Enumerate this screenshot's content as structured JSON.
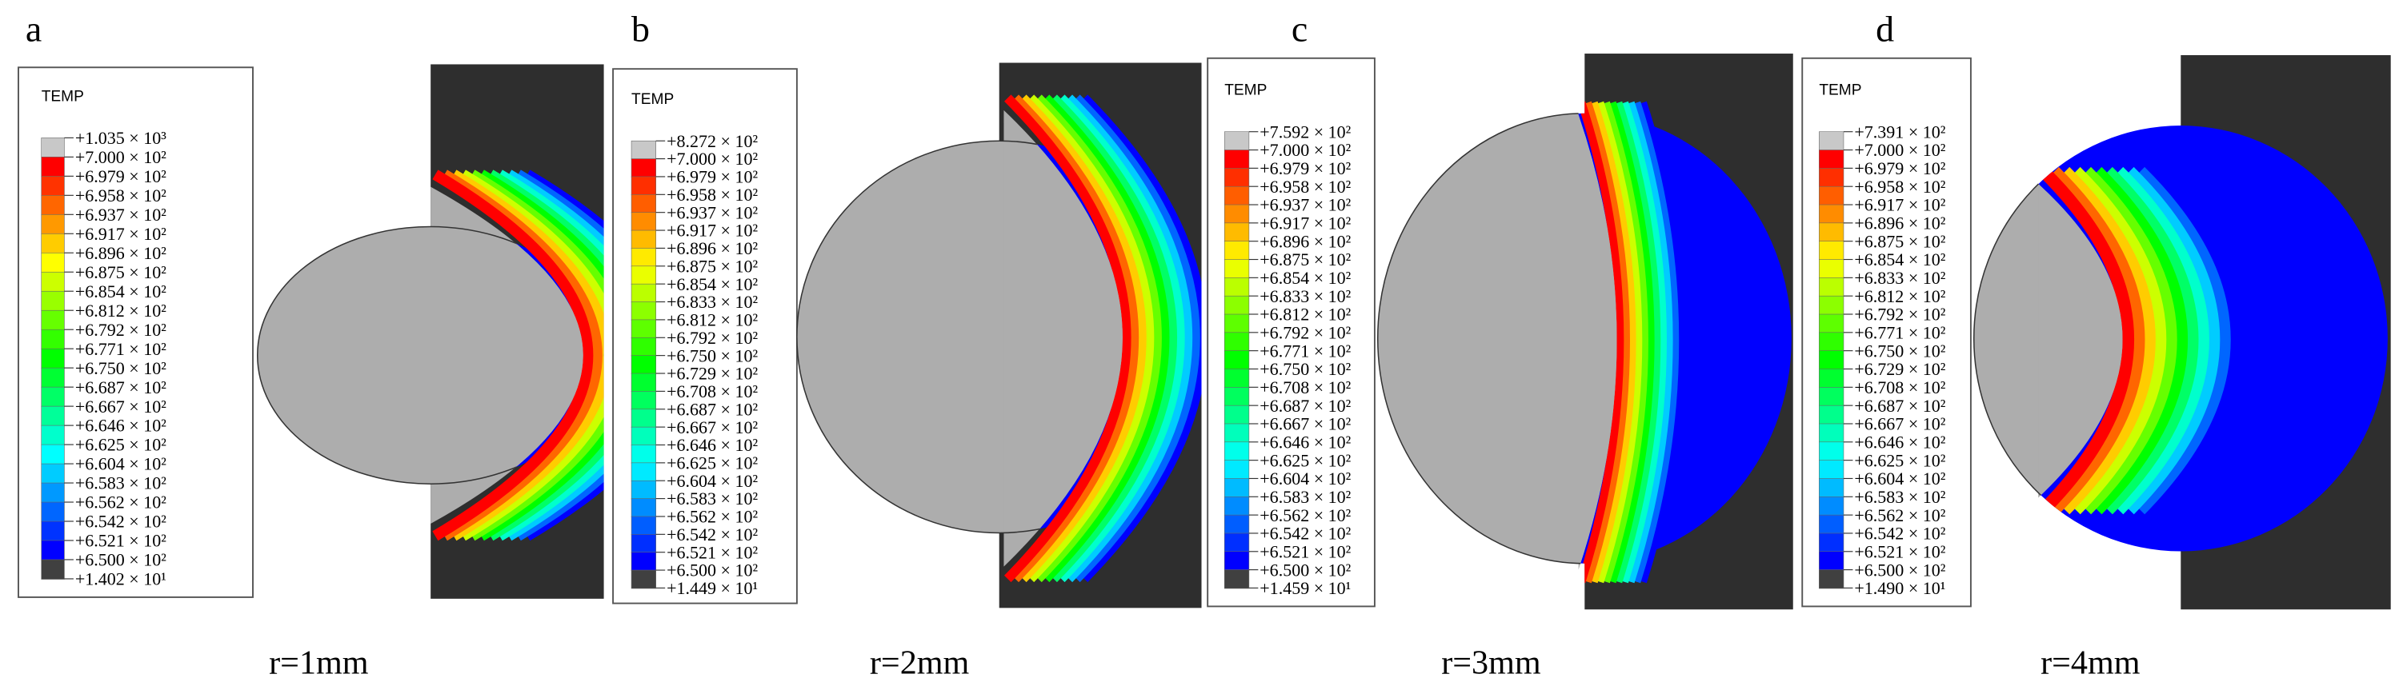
{
  "panels": [
    {
      "label": "a",
      "caption": "r=1mm",
      "legend": {
        "title": "TEMP",
        "entries": [
          "+1.035 × 10³",
          "+7.000 × 10²",
          "+6.979 × 10²",
          "+6.958 × 10²",
          "+6.937 × 10²",
          "+6.917 × 10²",
          "+6.896 × 10²",
          "+6.875 × 10²",
          "+6.854 × 10²",
          "+6.812 × 10²",
          "+6.792 × 10²",
          "+6.771 × 10²",
          "+6.750 × 10²",
          "+6.687 × 10²",
          "+6.667 × 10²",
          "+6.646 × 10²",
          "+6.625 × 10²",
          "+6.604 × 10²",
          "+6.583 × 10²",
          "+6.562 × 10²",
          "+6.542 × 10²",
          "+6.521 × 10²",
          "+6.500 × 10²",
          "+1.402 × 10¹"
        ]
      }
    },
    {
      "label": "b",
      "caption": "r=2mm",
      "legend": {
        "title": "TEMP",
        "entries": [
          "+8.272 × 10²",
          "+7.000 × 10²",
          "+6.979 × 10²",
          "+6.958 × 10²",
          "+6.937 × 10²",
          "+6.917 × 10²",
          "+6.896 × 10²",
          "+6.875 × 10²",
          "+6.854 × 10²",
          "+6.833 × 10²",
          "+6.812 × 10²",
          "+6.792 × 10²",
          "+6.750 × 10²",
          "+6.729 × 10²",
          "+6.708 × 10²",
          "+6.687 × 10²",
          "+6.667 × 10²",
          "+6.646 × 10²",
          "+6.625 × 10²",
          "+6.604 × 10²",
          "+6.583 × 10²",
          "+6.562 × 10²",
          "+6.542 × 10²",
          "+6.521 × 10²",
          "+6.500 × 10²",
          "+1.449 × 10¹"
        ]
      }
    },
    {
      "label": "c",
      "caption": "r=3mm",
      "legend": {
        "title": "TEMP",
        "entries": [
          "+7.592 × 10²",
          "+7.000 × 10²",
          "+6.979 × 10²",
          "+6.958 × 10²",
          "+6.937 × 10²",
          "+6.917 × 10²",
          "+6.896 × 10²",
          "+6.875 × 10²",
          "+6.854 × 10²",
          "+6.833 × 10²",
          "+6.812 × 10²",
          "+6.792 × 10²",
          "+6.771 × 10²",
          "+6.750 × 10²",
          "+6.708 × 10²",
          "+6.687 × 10²",
          "+6.667 × 10²",
          "+6.646 × 10²",
          "+6.625 × 10²",
          "+6.604 × 10²",
          "+6.583 × 10²",
          "+6.562 × 10²",
          "+6.542 × 10²",
          "+6.521 × 10²",
          "+6.500 × 10²",
          "+1.459 × 10¹"
        ]
      }
    },
    {
      "label": "d",
      "caption": "r=4mm",
      "legend": {
        "title": "TEMP",
        "entries": [
          "+7.391 × 10²",
          "+7.000 × 10²",
          "+6.979 × 10²",
          "+6.958 × 10²",
          "+6.917 × 10²",
          "+6.896 × 10²",
          "+6.875 × 10²",
          "+6.854 × 10²",
          "+6.833 × 10²",
          "+6.812 × 10²",
          "+6.792 × 10²",
          "+6.771 × 10²",
          "+6.750 × 10²",
          "+6.729 × 10²",
          "+6.708 × 10²",
          "+6.687 × 10²",
          "+6.667 × 10²",
          "+6.646 × 10²",
          "+6.625 × 10²",
          "+6.604 × 10²",
          "+6.583 × 10²",
          "+6.562 × 10²",
          "+6.542 × 10²",
          "+6.521 × 10²",
          "+6.500 × 10²",
          "+1.490 × 10¹"
        ]
      }
    }
  ]
}
